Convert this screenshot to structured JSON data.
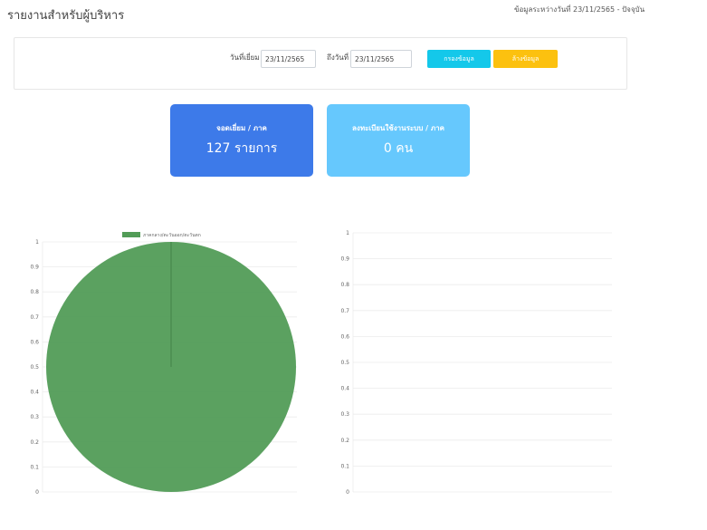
{
  "header": {
    "title": "รายงานสำหรับผู้บริหาร",
    "date_range_note": "ข้อมูลระหว่างวันที่ 23/11/2565 - ปัจจุบัน"
  },
  "filter": {
    "from_label": "วันที่เยี่ยม",
    "from_value": "23/11/2565",
    "to_label": "ถึงวันที่",
    "to_value": "23/11/2565",
    "filter_button": "กรองข้อมูล",
    "clear_button": "ล้างข้อมูล"
  },
  "cards": [
    {
      "label": "จอดเยี่ยม / ภาค",
      "value": "127 รายการ",
      "color": "#3d7ae9"
    },
    {
      "label": "ลงทะเบียนใช้งานระบบ / ภาค",
      "value": "0 คน",
      "color": "#66c8fd"
    }
  ],
  "chart_data": [
    {
      "type": "pie",
      "categories": [
        "ภาคกลาง/ตะวันออก/ตะวันตก"
      ],
      "values": [
        127
      ],
      "colors": [
        "#529c57"
      ],
      "legend": "top",
      "axis_ticks": [
        "1",
        "0.9",
        "0.8",
        "0.7",
        "0.6",
        "0.5",
        "0.4",
        "0.3",
        "0.2",
        "0.1",
        "0"
      ],
      "ylim": [
        0,
        1
      ],
      "grid": true
    },
    {
      "type": "bar",
      "categories": [],
      "series": [],
      "axis_ticks": [
        "1",
        "0.9",
        "0.8",
        "0.7",
        "0.6",
        "0.5",
        "0.4",
        "0.3",
        "0.2",
        "0.1",
        "0"
      ],
      "ylim": [
        0,
        1
      ],
      "grid": true
    }
  ]
}
